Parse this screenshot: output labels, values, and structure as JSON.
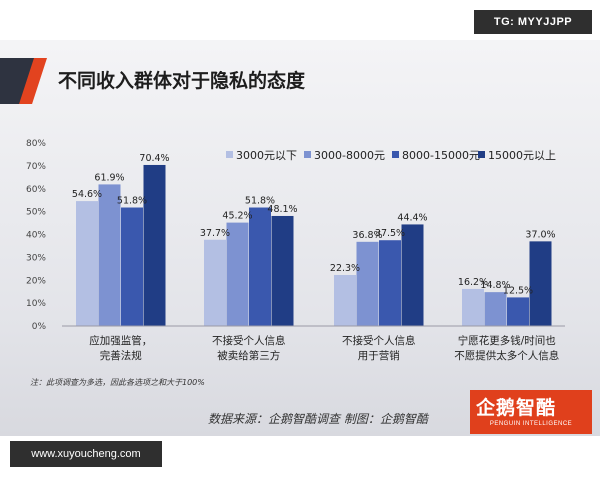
{
  "watermark": {
    "top_badge": "TG: MYYJJPP",
    "bottom_url": "www.xuyoucheng.com"
  },
  "colors": {
    "accent_red": "#e2431f",
    "stripe_dark": "#2e3340",
    "series": [
      "#b3bfe3",
      "#7d92d1",
      "#3a58ae",
      "#203d85"
    ]
  },
  "note": "注：此项调查为多选，因此各选项之和大于100%",
  "source": "数据来源：企鹅智酷调查 制图：企鹅智酷",
  "logo": {
    "main": "企鹅智酷",
    "sub": "PENGUIN INTELLIGENCE"
  },
  "chart_data": {
    "type": "bar",
    "title": "不同收入群体对于隐私的态度",
    "categories": [
      [
        "应加强监管，",
        "完善法规"
      ],
      [
        "不接受个人信息",
        "被卖给第三方"
      ],
      [
        "不接受个人信息",
        "用于营销"
      ],
      [
        "宁愿花更多钱/时间也",
        "不愿提供太多个人信息"
      ]
    ],
    "series": [
      {
        "name": "3000元以下",
        "values": [
          54.6,
          37.7,
          22.3,
          16.2
        ]
      },
      {
        "name": "3000-8000元",
        "values": [
          61.9,
          45.2,
          36.8,
          14.8
        ]
      },
      {
        "name": "8000-15000元",
        "values": [
          51.8,
          51.8,
          37.5,
          12.5
        ]
      },
      {
        "name": "15000元以上",
        "values": [
          70.4,
          48.1,
          44.4,
          37.0
        ]
      }
    ],
    "value_labels": [
      [
        "54.6%",
        "61.9%",
        "51.8%",
        "70.4%"
      ],
      [
        "37.7%",
        "45.2%",
        "51.8%",
        "48.1%"
      ],
      [
        "22.3%",
        "36.8%",
        "37.5%",
        "44.4%"
      ],
      [
        "16.2%",
        "14.8%",
        "12.5%",
        "37.0%"
      ]
    ],
    "yticks": [
      "0%",
      "10%",
      "20%",
      "30%",
      "40%",
      "50%",
      "60%",
      "70%",
      "80%"
    ],
    "ylim": [
      0,
      80
    ],
    "legend_position": "top-right",
    "grid": false
  }
}
